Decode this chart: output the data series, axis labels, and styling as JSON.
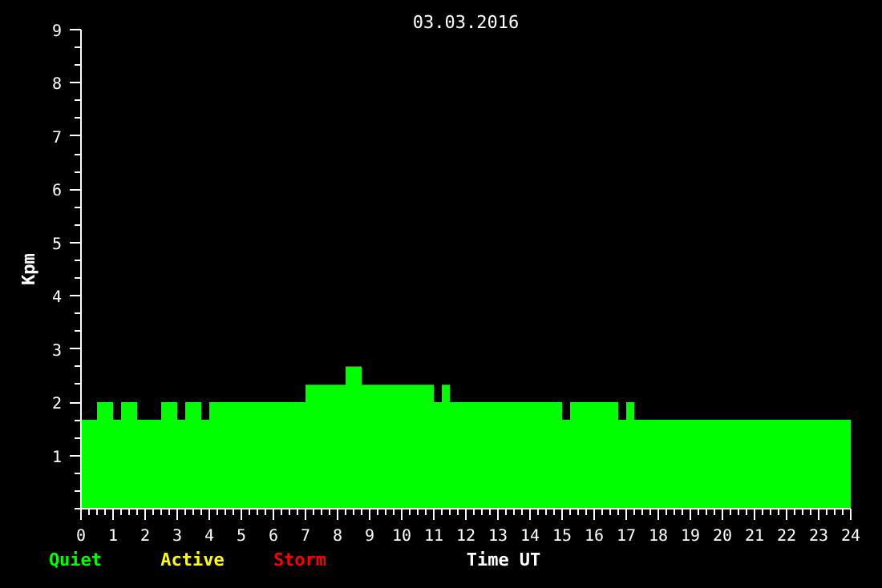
{
  "chart_data": {
    "type": "histogram",
    "title": "03.03.2016",
    "xlabel": "Time UT",
    "ylabel": "Kpm",
    "bins": [
      0,
      0.5,
      1,
      1.25,
      1.75,
      2.5,
      3,
      3.25,
      3.75,
      4,
      7,
      8.25,
      8.75,
      11,
      11.25,
      11.5,
      15,
      15.25,
      16.75,
      17,
      17.25,
      24
    ],
    "series": [
      {
        "color": "#00ff00",
        "values": [
          1.67,
          2,
          1.67,
          2,
          1.67,
          2,
          1.67,
          2,
          1.67,
          2,
          2.33,
          2.67,
          2.33,
          2,
          2.33,
          2,
          1.67,
          2,
          1.67,
          2,
          1.67
        ]
      }
    ],
    "annotations": [
      "Quiet",
      "Active",
      "Storm"
    ],
    "xlim": [
      0,
      24
    ],
    "ylim": [
      0,
      9
    ],
    "xticks": [
      0,
      1,
      2,
      3,
      4,
      5,
      6,
      7,
      8,
      9,
      10,
      11,
      12,
      13,
      14,
      15,
      16,
      17,
      18,
      19,
      20,
      21,
      22,
      23,
      24
    ],
    "yticks": [
      1,
      2,
      3,
      4,
      5,
      6,
      7,
      8,
      9
    ],
    "grid": false
  }
}
